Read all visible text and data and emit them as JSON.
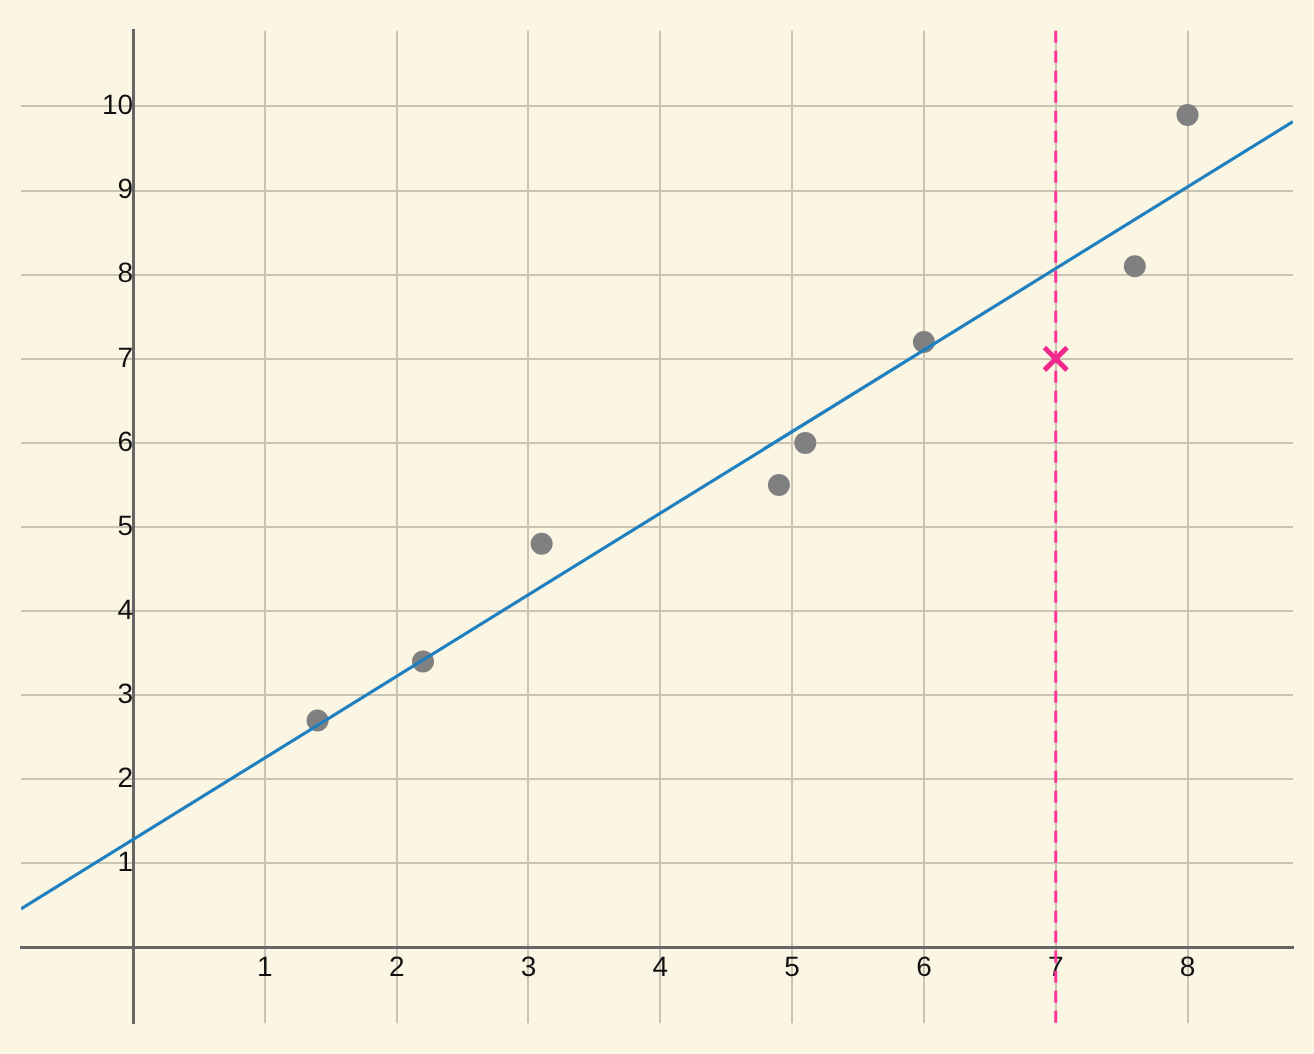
{
  "chart_data": {
    "type": "scatter",
    "series": [
      {
        "type": "line",
        "color": "#1f7fbf",
        "x": [
          -0.85,
          8.8
        ],
        "values": [
          0.46,
          9.82
        ],
        "marker": "none"
      },
      {
        "type": "scatter",
        "color": "#808080",
        "x": [
          1.4,
          2.2,
          3.1,
          4.9,
          5.1,
          6.0,
          7.6,
          8.0
        ],
        "values": [
          2.7,
          3.4,
          4.8,
          5.5,
          6.0,
          7.2,
          8.1,
          9.9
        ],
        "marker": "circle"
      },
      {
        "type": "scatter",
        "color": "#f0288c",
        "x": [
          7
        ],
        "values": [
          7
        ],
        "marker": "cross"
      }
    ],
    "xlim": [
      -0.85,
      8.8
    ],
    "ylim": [
      -0.9,
      10.9
    ],
    "xticks": [
      1,
      2,
      3,
      4,
      5,
      6,
      7,
      8
    ],
    "yticks": [
      1,
      2,
      3,
      4,
      5,
      6,
      7,
      8,
      9,
      10
    ],
    "grid": true,
    "ref_lines": [
      {
        "axis": "x",
        "value": 7,
        "color": "#ff3399",
        "line_style": "dashed"
      }
    ]
  }
}
